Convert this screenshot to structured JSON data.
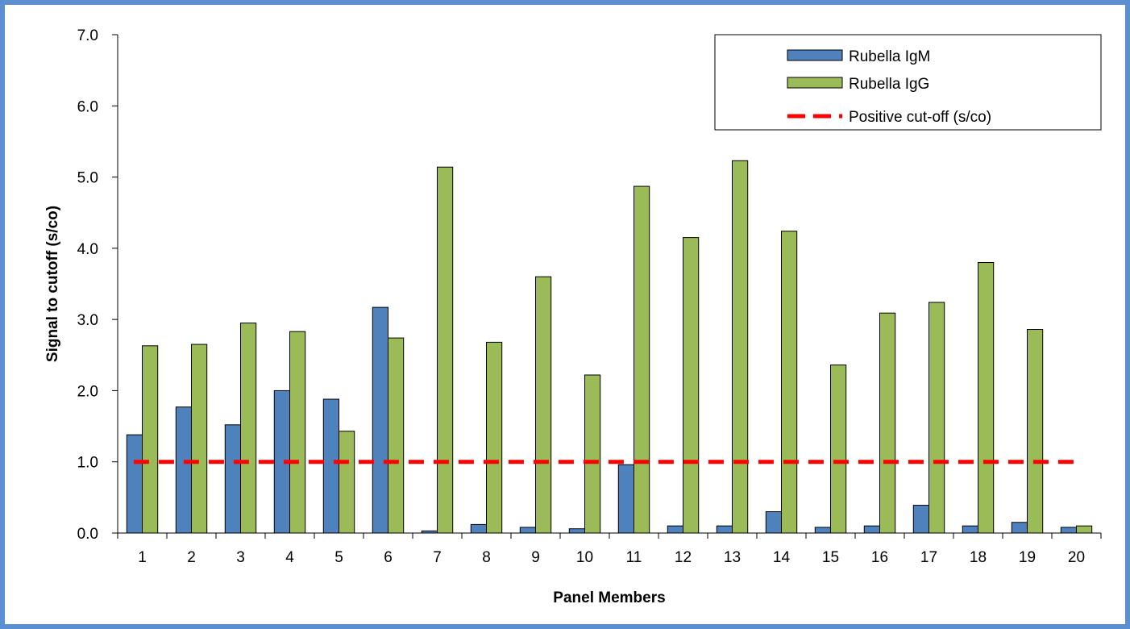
{
  "chart_data": {
    "type": "bar",
    "xlabel": "Panel Members",
    "ylabel": "Signal to cutoff (s/co)",
    "ylim": [
      0,
      7
    ],
    "yticks": [
      "0.0",
      "1.0",
      "2.0",
      "3.0",
      "4.0",
      "5.0",
      "6.0",
      "7.0"
    ],
    "categories": [
      "1",
      "2",
      "3",
      "4",
      "5",
      "6",
      "7",
      "8",
      "9",
      "10",
      "11",
      "12",
      "13",
      "14",
      "15",
      "16",
      "17",
      "18",
      "19",
      "20"
    ],
    "series": [
      {
        "name": "Rubella IgM",
        "color": "#4f81bd",
        "values": [
          1.38,
          1.77,
          1.52,
          2.0,
          1.88,
          3.17,
          0.03,
          0.12,
          0.08,
          0.06,
          0.96,
          0.1,
          0.1,
          0.3,
          0.08,
          0.1,
          0.39,
          0.1,
          0.15,
          0.08
        ]
      },
      {
        "name": "Rubella IgG",
        "color": "#9bbb59",
        "values": [
          2.63,
          2.65,
          2.95,
          2.83,
          1.43,
          2.74,
          5.14,
          2.68,
          3.6,
          2.22,
          4.87,
          4.15,
          5.23,
          4.24,
          2.36,
          3.09,
          3.24,
          3.8,
          2.86,
          0.1
        ]
      }
    ],
    "reference_line": {
      "name": "Positive cut-off (s/co)",
      "value": 1.0,
      "color": "#ff0000"
    },
    "legend": {
      "position": "top-right"
    },
    "grid": false
  }
}
